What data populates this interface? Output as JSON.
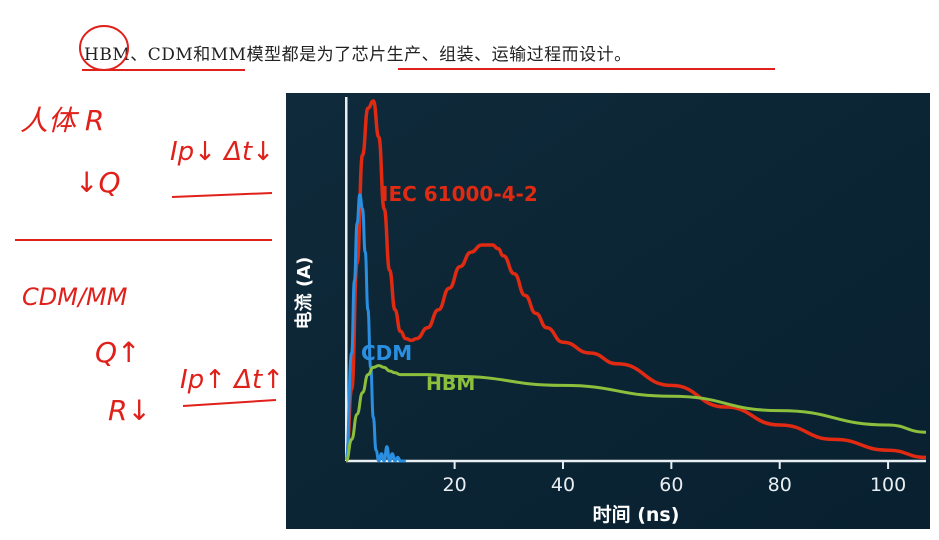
{
  "headline": "HBM、CDM和MM模型都是为了芯片生产、组装、运输过程而设计。",
  "notes": {
    "line1": "人体 R",
    "line2": "↓Q",
    "note_ip1": "Ip↓ Δt↓",
    "line3": "CDM/MM",
    "line4": "Q↑",
    "line5": "R↓",
    "note_ip2": "Ip↑ Δt↑"
  },
  "colors": {
    "background": "#0b2231",
    "iec": "#e02a12",
    "cdm": "#2a8fe0",
    "hbm": "#8cbf3c",
    "ink": "#e0201a"
  },
  "chart_data": {
    "type": "line",
    "title": "",
    "xlabel": "时间 (ns)",
    "ylabel": "电流 (A)",
    "xlim": [
      -3,
      107
    ],
    "ylim": [
      0,
      1
    ],
    "xticks": [
      20,
      40,
      60,
      80,
      100
    ],
    "grid": false,
    "series": [
      {
        "name": "IEC 61000-4-2",
        "color": "#e02a12",
        "x": [
          0,
          1,
          2,
          3,
          4,
          5,
          6,
          7,
          8,
          9,
          10,
          11,
          12,
          13,
          15,
          17,
          19,
          21,
          23,
          25,
          27,
          28,
          29,
          31,
          33,
          35,
          37,
          40,
          45,
          50,
          60,
          70,
          80,
          90,
          100,
          107
        ],
        "y": [
          0,
          0.2,
          0.55,
          0.85,
          0.98,
          1.0,
          0.9,
          0.7,
          0.53,
          0.42,
          0.36,
          0.34,
          0.335,
          0.34,
          0.37,
          0.42,
          0.48,
          0.54,
          0.58,
          0.6,
          0.6,
          0.59,
          0.57,
          0.52,
          0.46,
          0.41,
          0.37,
          0.33,
          0.3,
          0.27,
          0.21,
          0.15,
          0.1,
          0.06,
          0.03,
          0.01
        ]
      },
      {
        "name": "CDM",
        "color": "#2a8fe0",
        "x": [
          0,
          1,
          1.5,
          2,
          2.5,
          3,
          3.5,
          4,
          4.5,
          5,
          5.5,
          6,
          6.5,
          7,
          7.5,
          8,
          8.5,
          9,
          9.5,
          10,
          11
        ],
        "y": [
          0,
          0.3,
          0.5,
          0.66,
          0.74,
          0.7,
          0.58,
          0.42,
          0.26,
          0.12,
          0.03,
          0.0,
          0.02,
          0.0,
          0.04,
          0.0,
          0.02,
          0.0,
          0.01,
          0.0,
          0.0
        ]
      },
      {
        "name": "HBM",
        "color": "#8cbf3c",
        "x": [
          0,
          1,
          2,
          3,
          4,
          5,
          6,
          7,
          8,
          9,
          10,
          15,
          20,
          40,
          60,
          80,
          100,
          107
        ],
        "y": [
          0,
          0.06,
          0.13,
          0.19,
          0.24,
          0.26,
          0.265,
          0.26,
          0.25,
          0.245,
          0.24,
          0.24,
          0.235,
          0.21,
          0.18,
          0.14,
          0.1,
          0.08
        ]
      }
    ]
  }
}
